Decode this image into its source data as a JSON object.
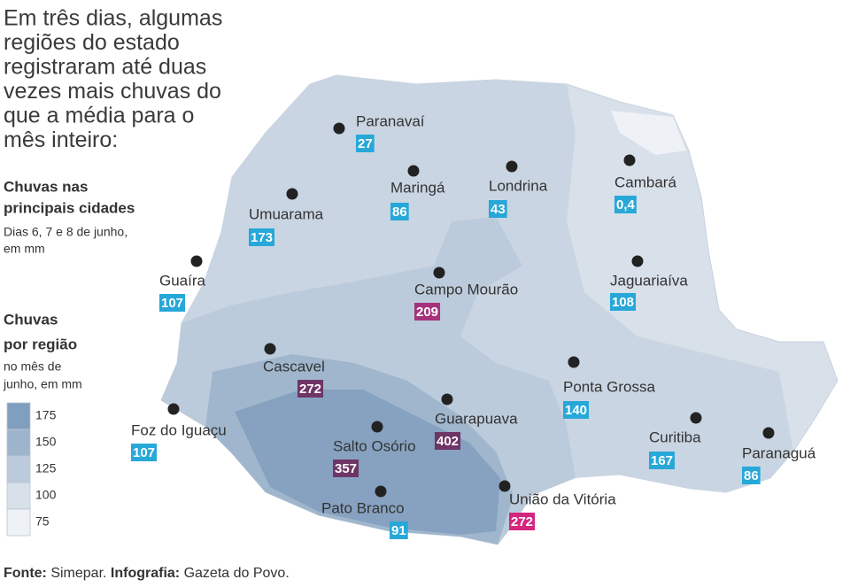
{
  "intro": [
    "Em três dias, algumas",
    "regiões do estado",
    "registraram até duas",
    "vezes mais chuvas do",
    "que a média para o",
    "mês inteiro:"
  ],
  "cities_title": [
    "Chuvas nas",
    "principais cidades"
  ],
  "cities_subtitle": [
    "Dias 6, 7 e 8 de junho,",
    "em mm"
  ],
  "regions_title": [
    "Chuvas",
    "por região"
  ],
  "regions_subtitle": [
    "no mês de",
    "junho, em mm"
  ],
  "legend": [
    {
      "value": 175,
      "color": "#809fbe"
    },
    {
      "value": 150,
      "color": "#9db4cc"
    },
    {
      "value": 125,
      "color": "#bccbdb"
    },
    {
      "value": 100,
      "color": "#d8e0ea"
    },
    {
      "value": 75,
      "color": "#eef2f6"
    }
  ],
  "cities": [
    {
      "name": "Paranavaí",
      "value": "27",
      "color": "#27a8d8"
    },
    {
      "name": "Maringá",
      "value": "86",
      "color": "#27a8d8"
    },
    {
      "name": "Londrina",
      "value": "43",
      "color": "#27a8d8"
    },
    {
      "name": "Cambará",
      "value": "0,4",
      "color": "#27a8d8"
    },
    {
      "name": "Umuarama",
      "value": "173",
      "color": "#27a8d8"
    },
    {
      "name": "Guaíra",
      "value": "107",
      "color": "#27a8d8"
    },
    {
      "name": "Campo Mourão",
      "value": "209",
      "color": "#a6327c"
    },
    {
      "name": "Jaguariaíva",
      "value": "108",
      "color": "#27a8d8"
    },
    {
      "name": "Cascavel",
      "value": "272",
      "color": "#6f3566"
    },
    {
      "name": "Ponta Grossa",
      "value": "140",
      "color": "#27a8d8"
    },
    {
      "name": "Foz do Iguaçu",
      "value": "107",
      "color": "#27a8d8"
    },
    {
      "name": "Guarapuava",
      "value": "402",
      "color": "#6f3566"
    },
    {
      "name": "Salto Osório",
      "value": "357",
      "color": "#6f3566"
    },
    {
      "name": "Curitiba",
      "value": "167",
      "color": "#27a8d8"
    },
    {
      "name": "Paranaguá",
      "value": "86",
      "color": "#27a8d8"
    },
    {
      "name": "Pato Branco",
      "value": "91",
      "color": "#27a8d8"
    },
    {
      "name": "União da Vitória",
      "value": "272",
      "color": "#d4267e"
    }
  ],
  "footer": {
    "source_label": "Fonte:",
    "source": " Simepar. ",
    "graphics_label": "Infografia:",
    "graphics": " Gazeta do Povo."
  }
}
